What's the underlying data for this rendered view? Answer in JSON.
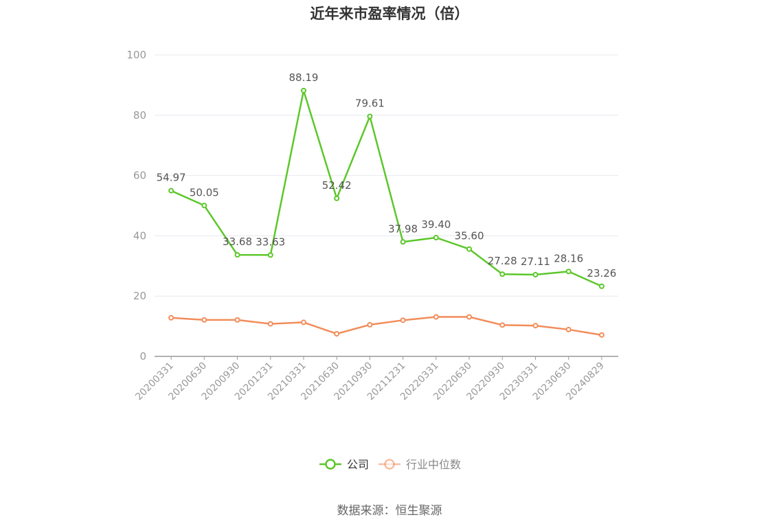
{
  "title": "近年来市盈率情况（倍）",
  "source": "数据来源：恒生聚源",
  "colors": {
    "company": "#5cc72a",
    "industry": "#f28c5a",
    "grid": "#e6e8ee",
    "axis": "#999999",
    "tick_text": "#999999",
    "label_text": "#555555"
  },
  "chart_data": {
    "type": "line",
    "title": "近年来市盈率情况（倍）",
    "xlabel": "",
    "ylabel": "",
    "ylim": [
      0,
      100
    ],
    "yticks": [
      "0",
      "20",
      "40",
      "60",
      "80",
      "100"
    ],
    "grid": true,
    "legend_position": "bottom",
    "categories": [
      "20200331",
      "20200630",
      "20200930",
      "20201231",
      "20210331",
      "20210630",
      "20210930",
      "20211231",
      "20220331",
      "20220630",
      "20220930",
      "20230331",
      "20230630",
      "20240829"
    ],
    "series": [
      {
        "name": "公司",
        "color": "#5cc72a",
        "values": [
          54.97,
          50.05,
          33.68,
          33.63,
          88.19,
          52.42,
          79.61,
          37.98,
          39.4,
          35.6,
          27.28,
          27.11,
          28.16,
          23.26
        ],
        "labels": [
          "54.97",
          "50.05",
          "33.68",
          "33.63",
          "88.19",
          "52.42",
          "79.61",
          "37.98",
          "39.40",
          "35.60",
          "27.28",
          "27.11",
          "28.16",
          "23.26"
        ]
      },
      {
        "name": "行业中位数",
        "color": "#f28c5a",
        "values": [
          12.8,
          12.1,
          12.1,
          10.8,
          11.3,
          7.5,
          10.5,
          12.0,
          13.1,
          13.1,
          10.4,
          10.2,
          8.9,
          7.1
        ]
      }
    ]
  }
}
